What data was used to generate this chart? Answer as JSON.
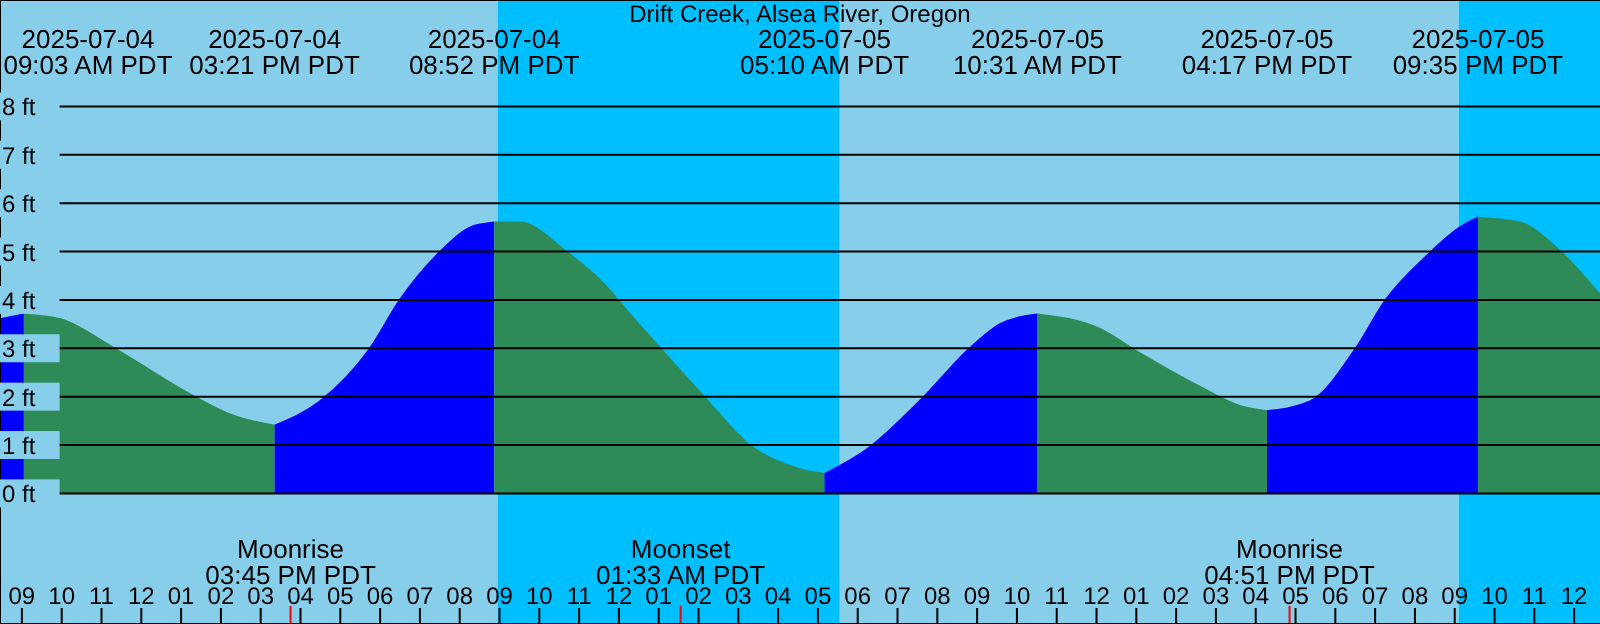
{
  "chart_data": {
    "type": "area",
    "title": "Drift Creek, Alsea River, Oregon",
    "series": [
      {
        "color": "#0000ff",
        "x": [
          "2025-07-04T08:27",
          "2025-07-04T09:03"
        ],
        "values": [
          3.6,
          3.7
        ]
      },
      {
        "color": "#2e8b57",
        "x": [
          "2025-07-04T09:03",
          "2025-07-04T09:58",
          "2025-07-04T11:19",
          "2025-07-04T13:07",
          "2025-07-04T14:20",
          "2025-07-04T15:21"
        ],
        "values": [
          3.7,
          3.6,
          3.0,
          2.1,
          1.6,
          1.4
        ]
      },
      {
        "color": "#0000ff",
        "x": [
          "2025-07-04T15:21",
          "2025-07-04T16:29",
          "2025-07-04T17:45",
          "2025-07-04T18:30",
          "2025-07-04T19:31",
          "2025-07-04T20:16",
          "2025-07-04T20:52"
        ],
        "values": [
          1.4,
          1.9,
          3.0,
          4.0,
          5.0,
          5.5,
          5.6
        ]
      },
      {
        "color": "#2e8b57",
        "x": [
          "2025-07-04T20:52",
          "2025-07-04T21:31",
          "2025-07-04T22:40",
          "2025-07-04T23:32",
          "2025-07-05T00:23",
          "2025-07-05T01:02",
          "2025-07-05T02:08",
          "2025-07-05T03:17",
          "2025-07-05T04:33",
          "2025-07-05T05:10"
        ],
        "values": [
          5.6,
          5.6,
          5.0,
          4.4,
          3.6,
          3.0,
          2.0,
          1.0,
          0.5,
          0.4
        ]
      },
      {
        "color": "#0000ff",
        "x": [
          "2025-07-05T05:10",
          "2025-07-05T06:13",
          "2025-07-05T07:40",
          "2025-07-05T08:49",
          "2025-07-05T09:35",
          "2025-07-05T10:31"
        ],
        "values": [
          0.4,
          0.9,
          2.0,
          3.0,
          3.5,
          3.7
        ]
      },
      {
        "color": "#2e8b57",
        "x": [
          "2025-07-05T10:31",
          "2025-07-05T12:05",
          "2025-07-05T13:05",
          "2025-07-05T14:36",
          "2025-07-05T15:37",
          "2025-07-05T16:17"
        ],
        "values": [
          3.7,
          3.4,
          2.9,
          2.2,
          1.8,
          1.7
        ]
      },
      {
        "color": "#0000ff",
        "x": [
          "2025-07-05T16:17",
          "2025-07-05T17:22",
          "2025-07-05T18:31",
          "2025-07-05T19:16",
          "2025-07-05T20:17",
          "2025-07-05T21:08",
          "2025-07-05T21:35"
        ],
        "values": [
          1.7,
          1.9,
          3.0,
          4.0,
          4.9,
          5.5,
          5.7
        ]
      },
      {
        "color": "#2e8b57",
        "x": [
          "2025-07-05T21:35",
          "2025-07-05T22:38",
          "2025-07-05T23:39",
          "2025-07-06T00:39"
        ],
        "values": [
          5.7,
          5.6,
          5.0,
          4.1
        ]
      }
    ],
    "xlim": [
      "2025-07-04T08:27",
      "2025-07-06T00:39"
    ],
    "xticks": [
      {
        "value": "2025-07-04T09:00",
        "label": "09"
      },
      {
        "value": "2025-07-04T10:00",
        "label": "10"
      },
      {
        "value": "2025-07-04T11:00",
        "label": "11"
      },
      {
        "value": "2025-07-04T12:00",
        "label": "12"
      },
      {
        "value": "2025-07-04T13:00",
        "label": "01"
      },
      {
        "value": "2025-07-04T14:00",
        "label": "02"
      },
      {
        "value": "2025-07-04T15:00",
        "label": "03"
      },
      {
        "value": "2025-07-04T16:00",
        "label": "04"
      },
      {
        "value": "2025-07-04T17:00",
        "label": "05"
      },
      {
        "value": "2025-07-04T18:00",
        "label": "06"
      },
      {
        "value": "2025-07-04T19:00",
        "label": "07"
      },
      {
        "value": "2025-07-04T20:00",
        "label": "08"
      },
      {
        "value": "2025-07-04T21:00",
        "label": "09"
      },
      {
        "value": "2025-07-04T22:00",
        "label": "10"
      },
      {
        "value": "2025-07-04T23:00",
        "label": "11"
      },
      {
        "value": "2025-07-05T00:00",
        "label": "12"
      },
      {
        "value": "2025-07-05T01:00",
        "label": "01"
      },
      {
        "value": "2025-07-05T02:00",
        "label": "02"
      },
      {
        "value": "2025-07-05T03:00",
        "label": "03"
      },
      {
        "value": "2025-07-05T04:00",
        "label": "04"
      },
      {
        "value": "2025-07-05T05:00",
        "label": "05"
      },
      {
        "value": "2025-07-05T06:00",
        "label": "06"
      },
      {
        "value": "2025-07-05T07:00",
        "label": "07"
      },
      {
        "value": "2025-07-05T08:00",
        "label": "08"
      },
      {
        "value": "2025-07-05T09:00",
        "label": "09"
      },
      {
        "value": "2025-07-05T10:00",
        "label": "10"
      },
      {
        "value": "2025-07-05T11:00",
        "label": "11"
      },
      {
        "value": "2025-07-05T12:00",
        "label": "12"
      },
      {
        "value": "2025-07-05T13:00",
        "label": "01"
      },
      {
        "value": "2025-07-05T14:00",
        "label": "02"
      },
      {
        "value": "2025-07-05T15:00",
        "label": "03"
      },
      {
        "value": "2025-07-05T16:00",
        "label": "04"
      },
      {
        "value": "2025-07-05T17:00",
        "label": "05"
      },
      {
        "value": "2025-07-05T18:00",
        "label": "06"
      },
      {
        "value": "2025-07-05T19:00",
        "label": "07"
      },
      {
        "value": "2025-07-05T20:00",
        "label": "08"
      },
      {
        "value": "2025-07-05T21:00",
        "label": "09"
      },
      {
        "value": "2025-07-05T22:00",
        "label": "10"
      },
      {
        "value": "2025-07-05T23:00",
        "label": "11"
      },
      {
        "value": "2025-07-06T00:00",
        "label": "12"
      }
    ],
    "ylim": [
      -2.7,
      10.2
    ],
    "yticks": [
      {
        "value": 0,
        "label": "0 ft"
      },
      {
        "value": 1,
        "label": "1 ft"
      },
      {
        "value": 2,
        "label": "2 ft"
      },
      {
        "value": 3,
        "label": "3 ft"
      },
      {
        "value": 4,
        "label": "4 ft"
      },
      {
        "value": 5,
        "label": "5 ft"
      },
      {
        "value": 6,
        "label": "6 ft"
      },
      {
        "value": 7,
        "label": "7 ft"
      },
      {
        "value": 8,
        "label": "8 ft"
      }
    ],
    "grid": "y",
    "bands": [
      {
        "axis": "x",
        "from": "2025-07-04T08:27",
        "to": "2025-07-04T20:57",
        "color": "#87ceeb"
      },
      {
        "axis": "x",
        "from": "2025-07-04T20:57",
        "to": "2025-07-05T05:33",
        "color": "#00bfff"
      },
      {
        "axis": "x",
        "from": "2025-07-05T05:33",
        "to": "2025-07-05T21:06",
        "color": "#87ceeb"
      },
      {
        "axis": "x",
        "from": "2025-07-05T21:06",
        "to": "2025-07-06T00:39",
        "color": "#00bfff"
      }
    ],
    "ref_lines": [
      {
        "axis": "x",
        "value": "2025-07-04T15:45",
        "label": "Moonrise\n03:45 PM PDT",
        "color": "#ff0000"
      },
      {
        "axis": "x",
        "value": "2025-07-05T01:33",
        "label": "Moonset\n01:33 AM PDT",
        "color": "#ff0000"
      },
      {
        "axis": "x",
        "value": "2025-07-05T16:51",
        "label": "Moonrise\n04:51 PM PDT",
        "color": "#ff0000"
      }
    ],
    "annotations": [
      "2025-07-04\n09:03 AM PDT",
      "2025-07-04\n03:21 PM PDT",
      "2025-07-04\n08:52 PM PDT",
      "2025-07-05\n05:10 AM PDT",
      "2025-07-05\n10:31 AM PDT",
      "2025-07-05\n04:17 PM PDT",
      "2025-07-05\n09:35 PM PDT"
    ]
  }
}
